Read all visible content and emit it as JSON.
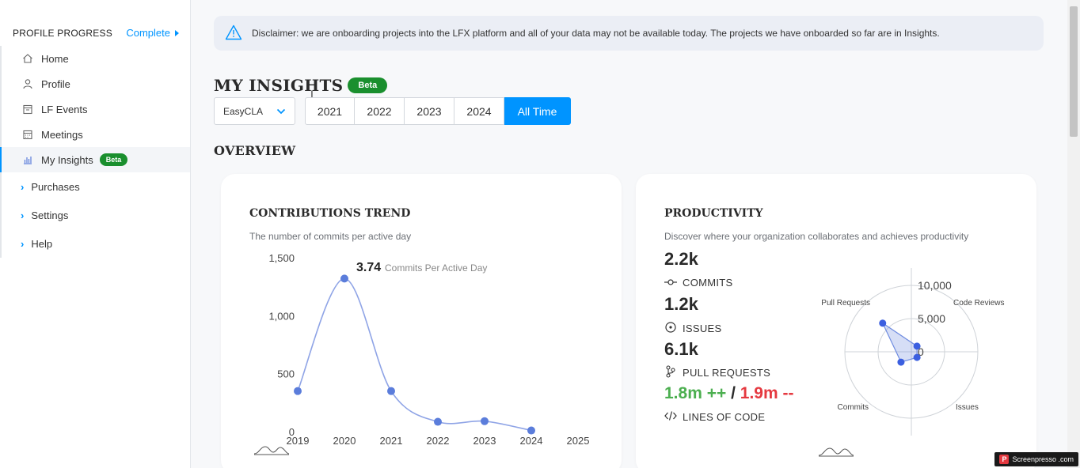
{
  "sidebar": {
    "profile_progress": {
      "title": "PROFILE PROGRESS",
      "status": "Complete"
    },
    "items": [
      {
        "label": "Home",
        "icon": "home-icon"
      },
      {
        "label": "Profile",
        "icon": "user-icon"
      },
      {
        "label": "LF Events",
        "icon": "calendar-icon"
      },
      {
        "label": "Meetings",
        "icon": "calendar-grid-icon"
      },
      {
        "label": "My Insights",
        "icon": "bar-chart-icon",
        "badge": "Beta",
        "active": true
      }
    ],
    "expandables": [
      {
        "label": "Purchases"
      },
      {
        "label": "Settings"
      },
      {
        "label": "Help"
      }
    ]
  },
  "disclaimer": "Disclaimer: we are onboarding projects into the LFX platform and all of your data may not be available today. The projects we have onboarded so far are in Insights.",
  "header": {
    "title": "MY INSIGHTS",
    "badge": "Beta"
  },
  "filters": {
    "project": "EasyCLA",
    "years": [
      "2021",
      "2022",
      "2023",
      "2024",
      "All Time"
    ],
    "selected": "All Time"
  },
  "overview_title": "OVERVIEW",
  "contributions": {
    "title": "CONTRIBUTIONS TREND",
    "subtitle": "The number of commits per active day",
    "highlight_value": "3.74",
    "highlight_label": "Commits Per Active Day"
  },
  "productivity": {
    "title": "PRODUCTIVITY",
    "subtitle": "Discover where your organization collaborates and achieves productivity",
    "commits_value": "2.2k",
    "commits_label": "COMMITS",
    "issues_value": "1.2k",
    "issues_label": "ISSUES",
    "prs_value": "6.1k",
    "prs_label": "PULL REQUESTS",
    "loc_added": "1.8m ++",
    "loc_sep": "/",
    "loc_removed": "1.9m --",
    "loc_label": "LINES OF CODE"
  },
  "chart_data": [
    {
      "type": "line",
      "x": [
        "2019",
        "2020",
        "2021",
        "2022",
        "2023",
        "2024",
        "2025"
      ],
      "values": [
        350,
        1320,
        350,
        85,
        90,
        10,
        null
      ],
      "ylim": [
        0,
        1500
      ],
      "yticks": [
        "1,500",
        "1,000",
        "500",
        "0"
      ],
      "color": "#5b7ddb"
    },
    {
      "type": "radar",
      "axes": [
        "Code Reviews",
        "Issues",
        "Commits",
        "Pull Requests"
      ],
      "values": [
        1200,
        1200,
        2200,
        6100
      ],
      "rticks": [
        "10,000",
        "5,000",
        "0"
      ],
      "rmax": 10000,
      "color": "#3b5fe0"
    }
  ],
  "watermark": "Screenpresso .com"
}
